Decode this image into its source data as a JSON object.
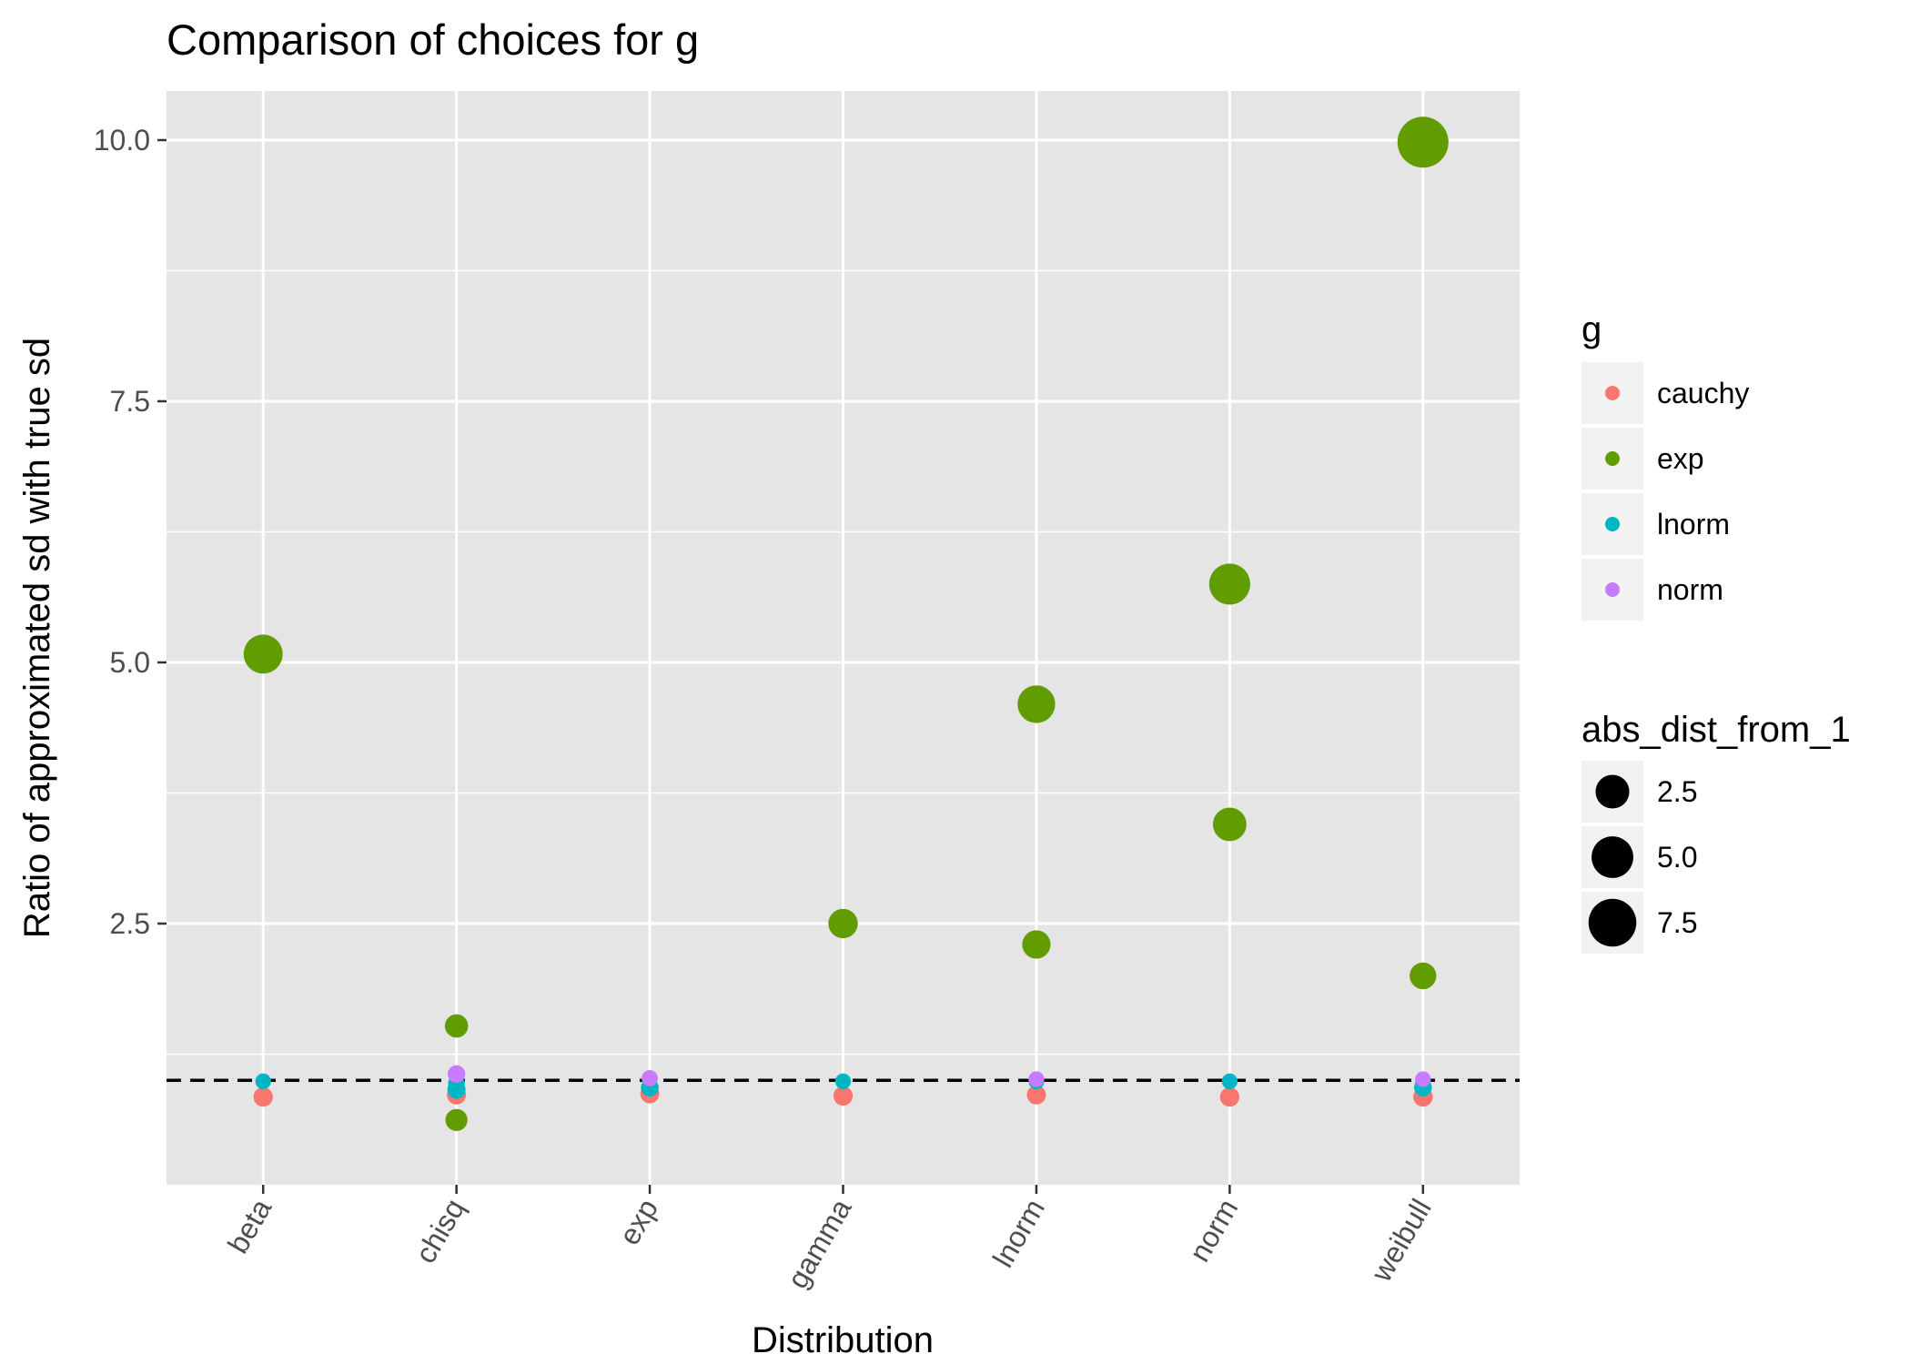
{
  "chart_data": {
    "type": "scatter",
    "title": "Comparison of choices for g",
    "xlabel": "Distribution",
    "ylabel": "Ratio of approximated sd with true sd",
    "categories": [
      "beta",
      "chisq",
      "exp",
      "gamma",
      "lnorm",
      "norm",
      "weibull"
    ],
    "yticks": [
      "2.5",
      "5.0",
      "7.5",
      "10.0"
    ],
    "ytick_values": [
      2.5,
      5.0,
      7.5,
      10.0
    ],
    "ylim": [
      0.0,
      10.47
    ],
    "reference_line": {
      "y": 1.0,
      "style": "dashed",
      "color": "#000000"
    },
    "grid": true,
    "panel_background": "#e5e5e5",
    "colors": {
      "cauchy": "#f8766d",
      "exp": "#619c00",
      "lnorm": "#00b5c4",
      "norm": "#c77cff"
    },
    "series": [
      {
        "name": "cauchy",
        "x": [
          "beta",
          "chisq",
          "exp",
          "gamma",
          "lnorm",
          "norm",
          "weibull"
        ],
        "y": [
          0.84,
          0.86,
          0.87,
          0.85,
          0.86,
          0.84,
          0.84
        ],
        "size": [
          0.16,
          0.14,
          0.13,
          0.15,
          0.14,
          0.16,
          0.16
        ]
      },
      {
        "name": "exp",
        "x": [
          "beta",
          "chisq",
          "chisq",
          "gamma",
          "lnorm",
          "lnorm",
          "norm",
          "norm",
          "weibull",
          "weibull"
        ],
        "y": [
          5.08,
          1.52,
          0.62,
          2.5,
          4.6,
          2.3,
          5.75,
          3.45,
          9.98,
          2.0
        ],
        "size": [
          4.08,
          0.52,
          0.38,
          1.5,
          3.6,
          1.3,
          4.75,
          2.45,
          8.98,
          1.0
        ]
      },
      {
        "name": "lnorm",
        "x": [
          "beta",
          "chisq",
          "chisq",
          "exp",
          "gamma",
          "lnorm",
          "norm",
          "weibull",
          "weibull"
        ],
        "y": [
          0.99,
          0.97,
          0.91,
          0.93,
          0.99,
          0.99,
          0.99,
          0.99,
          0.93
        ],
        "size": [
          0.01,
          0.03,
          0.09,
          0.07,
          0.01,
          0.01,
          0.01,
          0.01,
          0.07
        ]
      },
      {
        "name": "norm",
        "x": [
          "chisq",
          "exp",
          "lnorm",
          "weibull"
        ],
        "y": [
          1.06,
          1.02,
          1.01,
          1.01
        ],
        "size": [
          0.06,
          0.02,
          0.01,
          0.01
        ]
      }
    ],
    "legend": {
      "placement": "right",
      "color_title": "g",
      "color_entries": [
        "cauchy",
        "exp",
        "lnorm",
        "norm"
      ],
      "size_title": "abs_dist_from_1",
      "size_entries": [
        "2.5",
        "5.0",
        "7.5"
      ],
      "size_values": [
        2.5,
        5.0,
        7.5
      ]
    }
  }
}
